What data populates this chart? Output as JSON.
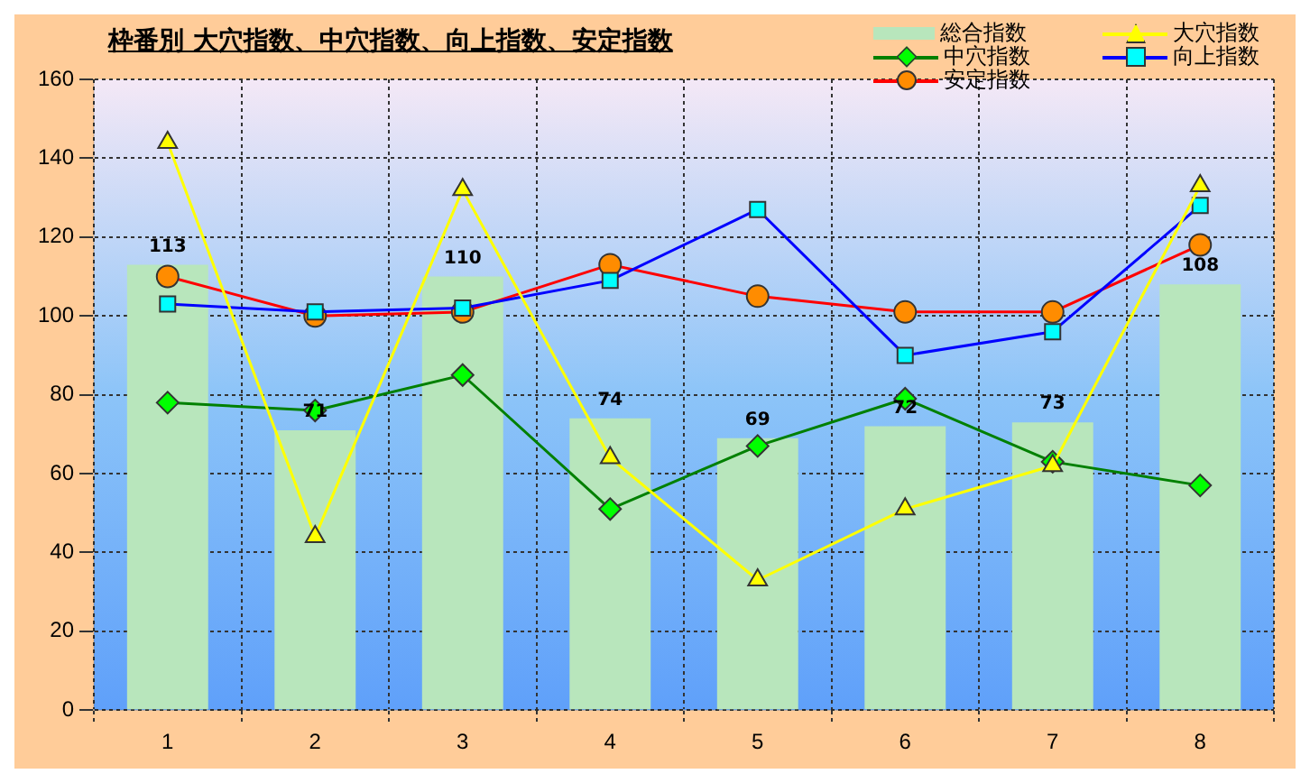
{
  "chart_data": {
    "type": "bar",
    "title": "枠番別  大穴指数、中穴指数、向上指数、安定指数",
    "categories": [
      "1",
      "2",
      "3",
      "4",
      "5",
      "6",
      "7",
      "8"
    ],
    "series": [
      {
        "name": "総合指数",
        "color": "#b8e6bc",
        "values": [
          113,
          71,
          110,
          74,
          69,
          72,
          73,
          108
        ],
        "data_labels": true
      },
      {
        "name": "大穴指数",
        "type": "line",
        "color": "#ffff00",
        "marker": "triangle",
        "values": [
          144,
          44,
          132,
          64,
          33,
          51,
          62,
          133
        ]
      },
      {
        "name": "中穴指数",
        "type": "line",
        "color": "#008000",
        "marker": "diamond",
        "values": [
          78,
          76,
          85,
          51,
          67,
          79,
          63,
          57
        ]
      },
      {
        "name": "向上指数",
        "type": "line",
        "color": "#0000ff",
        "marker": "square",
        "values": [
          103,
          101,
          102,
          109,
          127,
          90,
          96,
          128
        ]
      },
      {
        "name": "安定指数",
        "type": "line",
        "color": "#ff0000",
        "marker": "circle",
        "values": [
          110,
          100,
          101,
          113,
          105,
          101,
          101,
          118
        ]
      }
    ],
    "ylim": [
      0,
      160
    ],
    "yticks": [
      0,
      20,
      40,
      60,
      80,
      100,
      120,
      140,
      160
    ],
    "grid": true,
    "legend": "top right"
  }
}
